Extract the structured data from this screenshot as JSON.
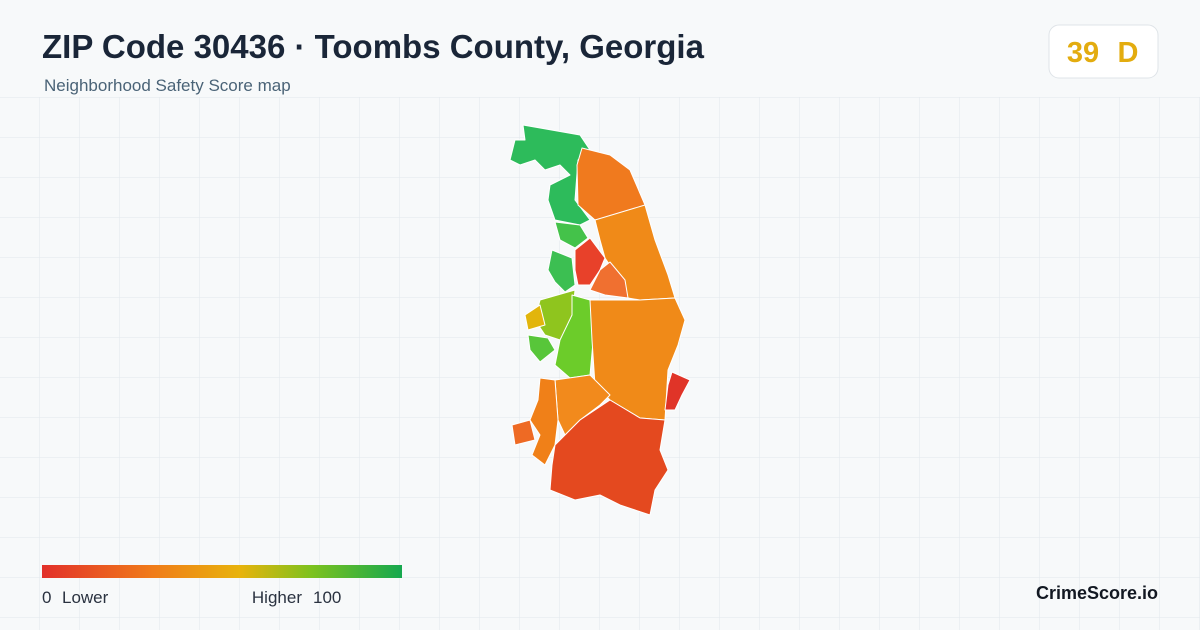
{
  "header": {
    "title": "ZIP Code 30436 · Toombs County, Georgia",
    "subtitle": "Neighborhood Safety Score map"
  },
  "badge": {
    "score": 39,
    "grade": "D"
  },
  "legend": {
    "min": 0,
    "min_label": "Lower",
    "max_label": "Higher",
    "max": 100
  },
  "brand": "CrimeScore.io"
}
